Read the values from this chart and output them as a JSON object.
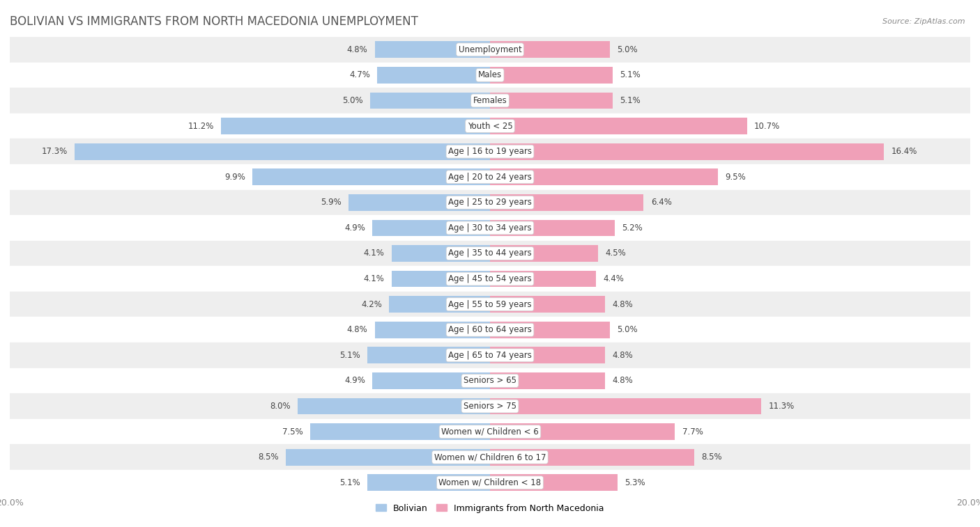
{
  "title": "BOLIVIAN VS IMMIGRANTS FROM NORTH MACEDONIA UNEMPLOYMENT",
  "source": "Source: ZipAtlas.com",
  "categories": [
    "Unemployment",
    "Males",
    "Females",
    "Youth < 25",
    "Age | 16 to 19 years",
    "Age | 20 to 24 years",
    "Age | 25 to 29 years",
    "Age | 30 to 34 years",
    "Age | 35 to 44 years",
    "Age | 45 to 54 years",
    "Age | 55 to 59 years",
    "Age | 60 to 64 years",
    "Age | 65 to 74 years",
    "Seniors > 65",
    "Seniors > 75",
    "Women w/ Children < 6",
    "Women w/ Children 6 to 17",
    "Women w/ Children < 18"
  ],
  "bolivian": [
    4.8,
    4.7,
    5.0,
    11.2,
    17.3,
    9.9,
    5.9,
    4.9,
    4.1,
    4.1,
    4.2,
    4.8,
    5.1,
    4.9,
    8.0,
    7.5,
    8.5,
    5.1
  ],
  "north_macedonia": [
    5.0,
    5.1,
    5.1,
    10.7,
    16.4,
    9.5,
    6.4,
    5.2,
    4.5,
    4.4,
    4.8,
    5.0,
    4.8,
    4.8,
    11.3,
    7.7,
    8.5,
    5.3
  ],
  "bolivian_color": "#a8c8e8",
  "north_macedonia_color": "#f0a0b8",
  "background_row_light": "#eeeeee",
  "background_row_white": "#ffffff",
  "max_value": 20.0,
  "legend_bolivian": "Bolivian",
  "legend_nm": "Immigrants from North Macedonia",
  "title_fontsize": 12,
  "label_fontsize": 8.5,
  "tick_fontsize": 9
}
